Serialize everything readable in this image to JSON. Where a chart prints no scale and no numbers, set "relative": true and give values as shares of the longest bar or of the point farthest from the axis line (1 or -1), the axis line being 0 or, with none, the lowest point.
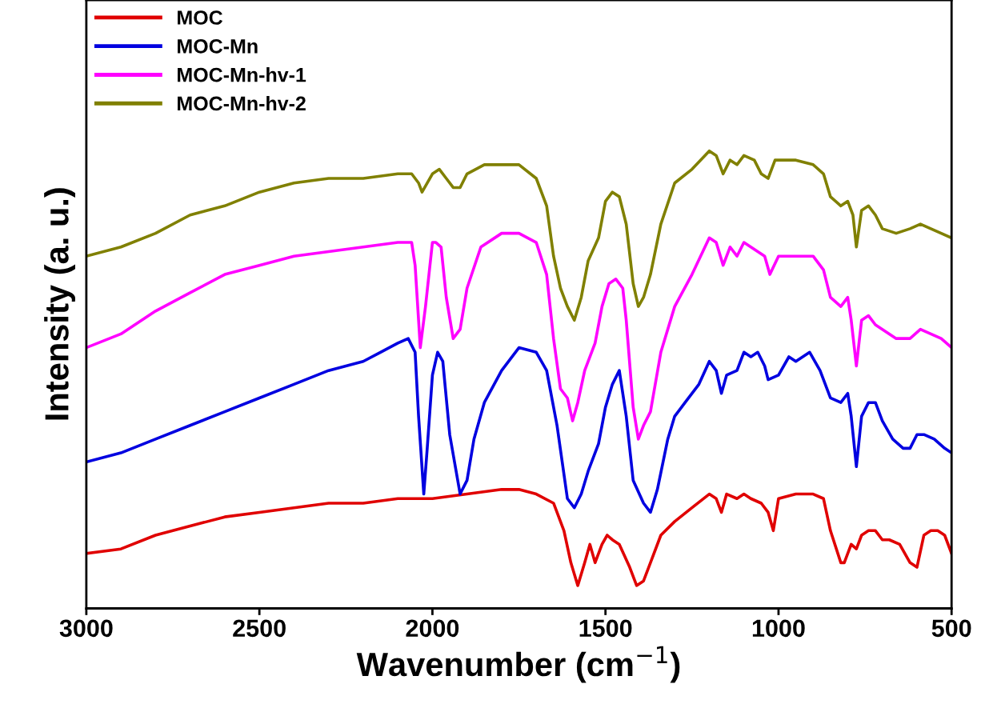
{
  "chart_data": {
    "type": "line",
    "relative": true,
    "xlabel": "Wavenumber (cm$^{−1}$)",
    "ylabel": "Intensity (a. u.)",
    "xlim": [
      3000,
      500
    ],
    "xticks": [
      3000,
      2500,
      2000,
      1500,
      1000,
      500
    ],
    "tick_labels": "x",
    "legend": "top left",
    "grid": false,
    "marker": "none",
    "line_style": "solid",
    "series": [
      {
        "name": "MOC",
        "color": "#e00000",
        "x": [
          3000,
          2900,
          2800,
          2700,
          2600,
          2500,
          2400,
          2300,
          2200,
          2100,
          2000,
          1900,
          1800,
          1750,
          1700,
          1650,
          1620,
          1600,
          1580,
          1560,
          1545,
          1530,
          1510,
          1495,
          1480,
          1460,
          1430,
          1410,
          1390,
          1370,
          1340,
          1300,
          1250,
          1200,
          1180,
          1165,
          1150,
          1120,
          1100,
          1080,
          1050,
          1030,
          1015,
          1000,
          950,
          900,
          870,
          850,
          820,
          810,
          790,
          775,
          760,
          740,
          720,
          700,
          680,
          650,
          620,
          600,
          580,
          560,
          540,
          520,
          500
        ],
        "values": [
          0.12,
          0.13,
          0.16,
          0.18,
          0.2,
          0.21,
          0.22,
          0.23,
          0.23,
          0.24,
          0.24,
          0.25,
          0.26,
          0.26,
          0.25,
          0.23,
          0.17,
          0.1,
          0.05,
          0.1,
          0.14,
          0.1,
          0.14,
          0.16,
          0.15,
          0.14,
          0.09,
          0.05,
          0.06,
          0.1,
          0.16,
          0.19,
          0.22,
          0.25,
          0.24,
          0.21,
          0.25,
          0.24,
          0.25,
          0.24,
          0.23,
          0.21,
          0.17,
          0.24,
          0.25,
          0.25,
          0.24,
          0.17,
          0.1,
          0.1,
          0.14,
          0.13,
          0.16,
          0.17,
          0.17,
          0.15,
          0.15,
          0.14,
          0.1,
          0.09,
          0.16,
          0.17,
          0.17,
          0.16,
          0.12
        ]
      },
      {
        "name": "MOC-Mn",
        "color": "#0000e0",
        "x": [
          3000,
          2900,
          2800,
          2700,
          2600,
          2500,
          2400,
          2300,
          2200,
          2150,
          2100,
          2070,
          2050,
          2040,
          2025,
          2015,
          2000,
          1985,
          1970,
          1950,
          1920,
          1900,
          1880,
          1850,
          1800,
          1750,
          1700,
          1670,
          1640,
          1610,
          1590,
          1570,
          1550,
          1520,
          1500,
          1480,
          1460,
          1440,
          1420,
          1390,
          1370,
          1350,
          1320,
          1300,
          1270,
          1230,
          1200,
          1180,
          1165,
          1150,
          1120,
          1100,
          1080,
          1060,
          1040,
          1030,
          1000,
          970,
          950,
          910,
          880,
          850,
          820,
          800,
          790,
          775,
          760,
          740,
          720,
          700,
          670,
          640,
          620,
          600,
          580,
          550,
          520,
          500
        ],
        "values": [
          0.32,
          0.34,
          0.37,
          0.4,
          0.43,
          0.46,
          0.49,
          0.52,
          0.54,
          0.56,
          0.58,
          0.59,
          0.56,
          0.42,
          0.25,
          0.35,
          0.51,
          0.56,
          0.54,
          0.38,
          0.25,
          0.28,
          0.37,
          0.45,
          0.52,
          0.57,
          0.56,
          0.52,
          0.4,
          0.24,
          0.22,
          0.25,
          0.3,
          0.36,
          0.44,
          0.49,
          0.52,
          0.42,
          0.28,
          0.23,
          0.21,
          0.26,
          0.37,
          0.42,
          0.45,
          0.49,
          0.54,
          0.52,
          0.47,
          0.51,
          0.52,
          0.56,
          0.55,
          0.56,
          0.53,
          0.5,
          0.51,
          0.55,
          0.54,
          0.56,
          0.52,
          0.46,
          0.45,
          0.47,
          0.42,
          0.31,
          0.42,
          0.45,
          0.45,
          0.41,
          0.37,
          0.35,
          0.35,
          0.38,
          0.38,
          0.37,
          0.35,
          0.34
        ]
      },
      {
        "name": "MOC-Mn-hv-1",
        "color": "#ff00ff",
        "x": [
          3000,
          2900,
          2800,
          2700,
          2600,
          2500,
          2400,
          2300,
          2200,
          2100,
          2060,
          2050,
          2035,
          2020,
          2000,
          1990,
          1975,
          1960,
          1940,
          1920,
          1900,
          1860,
          1800,
          1750,
          1700,
          1670,
          1650,
          1630,
          1610,
          1595,
          1580,
          1560,
          1530,
          1510,
          1490,
          1470,
          1450,
          1440,
          1420,
          1405,
          1390,
          1370,
          1340,
          1300,
          1250,
          1200,
          1180,
          1160,
          1140,
          1120,
          1100,
          1060,
          1040,
          1025,
          1000,
          950,
          900,
          870,
          850,
          820,
          800,
          790,
          775,
          760,
          740,
          720,
          700,
          660,
          620,
          590,
          560,
          530,
          500
        ],
        "values": [
          0.57,
          0.6,
          0.65,
          0.69,
          0.73,
          0.75,
          0.77,
          0.78,
          0.79,
          0.8,
          0.8,
          0.75,
          0.57,
          0.66,
          0.8,
          0.8,
          0.79,
          0.68,
          0.59,
          0.61,
          0.7,
          0.79,
          0.82,
          0.82,
          0.8,
          0.73,
          0.59,
          0.48,
          0.46,
          0.41,
          0.45,
          0.52,
          0.58,
          0.66,
          0.71,
          0.72,
          0.7,
          0.63,
          0.44,
          0.37,
          0.4,
          0.43,
          0.56,
          0.66,
          0.73,
          0.81,
          0.8,
          0.75,
          0.79,
          0.77,
          0.8,
          0.78,
          0.77,
          0.73,
          0.77,
          0.77,
          0.77,
          0.74,
          0.68,
          0.66,
          0.68,
          0.63,
          0.53,
          0.63,
          0.64,
          0.62,
          0.61,
          0.59,
          0.59,
          0.61,
          0.6,
          0.59,
          0.57
        ]
      },
      {
        "name": "MOC-Mn-hv-2",
        "color": "#808000",
        "x": [
          3000,
          2900,
          2800,
          2700,
          2600,
          2500,
          2400,
          2300,
          2200,
          2100,
          2060,
          2040,
          2030,
          2000,
          1980,
          1960,
          1940,
          1920,
          1900,
          1850,
          1800,
          1750,
          1700,
          1670,
          1650,
          1630,
          1610,
          1590,
          1570,
          1550,
          1520,
          1500,
          1480,
          1460,
          1440,
          1420,
          1405,
          1390,
          1370,
          1340,
          1300,
          1250,
          1200,
          1180,
          1160,
          1140,
          1120,
          1100,
          1070,
          1050,
          1030,
          1010,
          950,
          900,
          870,
          850,
          820,
          800,
          785,
          775,
          760,
          740,
          720,
          700,
          660,
          620,
          590,
          560,
          530,
          500
        ],
        "values": [
          0.77,
          0.79,
          0.82,
          0.86,
          0.88,
          0.91,
          0.93,
          0.94,
          0.94,
          0.95,
          0.95,
          0.93,
          0.91,
          0.95,
          0.96,
          0.94,
          0.92,
          0.92,
          0.95,
          0.97,
          0.97,
          0.97,
          0.94,
          0.88,
          0.77,
          0.7,
          0.66,
          0.63,
          0.68,
          0.76,
          0.81,
          0.89,
          0.91,
          0.9,
          0.84,
          0.71,
          0.66,
          0.68,
          0.73,
          0.84,
          0.93,
          0.96,
          1.0,
          0.99,
          0.95,
          0.98,
          0.97,
          0.99,
          0.98,
          0.95,
          0.94,
          0.98,
          0.98,
          0.97,
          0.95,
          0.9,
          0.88,
          0.89,
          0.86,
          0.79,
          0.87,
          0.88,
          0.86,
          0.83,
          0.82,
          0.83,
          0.84,
          0.83,
          0.82,
          0.81
        ]
      }
    ]
  }
}
